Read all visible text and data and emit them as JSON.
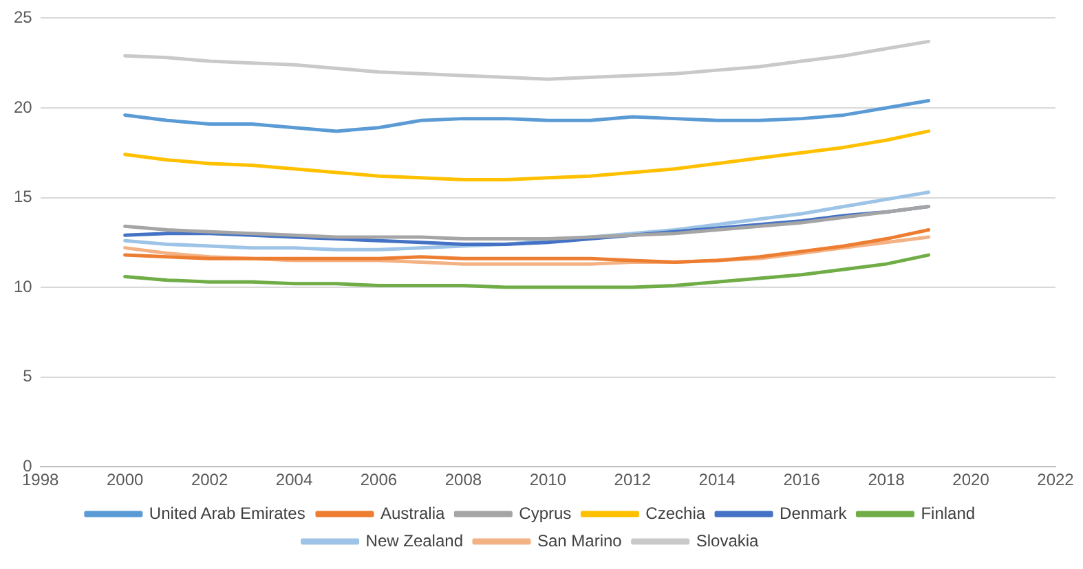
{
  "chart_data": {
    "type": "line",
    "x": [
      2000,
      2001,
      2002,
      2003,
      2004,
      2005,
      2006,
      2007,
      2008,
      2009,
      2010,
      2011,
      2012,
      2013,
      2014,
      2015,
      2016,
      2017,
      2018,
      2019
    ],
    "xlim": [
      1998,
      2022
    ],
    "xticks": [
      1998,
      2000,
      2002,
      2004,
      2006,
      2008,
      2010,
      2012,
      2014,
      2016,
      2018,
      2020,
      2022
    ],
    "ylim": [
      0,
      25
    ],
    "yticks": [
      0,
      5,
      10,
      15,
      20,
      25
    ],
    "grid": "y",
    "legend": "bottom",
    "marker": "none",
    "line_style": "solid",
    "series": [
      {
        "name": "United Arab Emirates",
        "color": "#5b9bd5",
        "values": [
          19.6,
          19.3,
          19.1,
          19.1,
          18.9,
          18.7,
          18.9,
          19.3,
          19.4,
          19.4,
          19.3,
          19.3,
          19.5,
          19.4,
          19.3,
          19.3,
          19.4,
          19.6,
          20.0,
          20.4
        ]
      },
      {
        "name": "Australia",
        "color": "#ed7d31",
        "values": [
          11.8,
          11.7,
          11.6,
          11.6,
          11.6,
          11.6,
          11.6,
          11.7,
          11.6,
          11.6,
          11.6,
          11.6,
          11.5,
          11.4,
          11.5,
          11.7,
          12.0,
          12.3,
          12.7,
          13.2
        ]
      },
      {
        "name": "Cyprus",
        "color": "#a5a5a5",
        "values": [
          13.4,
          13.2,
          13.1,
          13.0,
          12.9,
          12.8,
          12.8,
          12.8,
          12.7,
          12.7,
          12.7,
          12.8,
          12.9,
          13.0,
          13.2,
          13.4,
          13.6,
          13.9,
          14.2,
          14.5
        ]
      },
      {
        "name": "Czechia",
        "color": "#ffc000",
        "values": [
          17.4,
          17.1,
          16.9,
          16.8,
          16.6,
          16.4,
          16.2,
          16.1,
          16.0,
          16.0,
          16.1,
          16.2,
          16.4,
          16.6,
          16.9,
          17.2,
          17.5,
          17.8,
          18.2,
          18.7
        ]
      },
      {
        "name": "Denmark",
        "color": "#4472c4",
        "values": [
          12.9,
          13.0,
          13.0,
          12.9,
          12.8,
          12.7,
          12.6,
          12.5,
          12.4,
          12.4,
          12.5,
          12.7,
          12.9,
          13.1,
          13.3,
          13.5,
          13.7,
          14.0,
          14.2,
          14.5
        ]
      },
      {
        "name": "Finland",
        "color": "#70ad47",
        "values": [
          10.6,
          10.4,
          10.3,
          10.3,
          10.2,
          10.2,
          10.1,
          10.1,
          10.1,
          10.0,
          10.0,
          10.0,
          10.0,
          10.1,
          10.3,
          10.5,
          10.7,
          11.0,
          11.3,
          11.8
        ]
      },
      {
        "name": "New Zealand",
        "color": "#9dc3e6",
        "values": [
          12.6,
          12.4,
          12.3,
          12.2,
          12.2,
          12.1,
          12.1,
          12.2,
          12.3,
          12.4,
          12.6,
          12.8,
          13.0,
          13.2,
          13.5,
          13.8,
          14.1,
          14.5,
          14.9,
          15.3
        ]
      },
      {
        "name": "San Marino",
        "color": "#f4b183",
        "values": [
          12.2,
          11.9,
          11.7,
          11.6,
          11.5,
          11.5,
          11.5,
          11.4,
          11.3,
          11.3,
          11.3,
          11.3,
          11.4,
          11.4,
          11.5,
          11.6,
          11.9,
          12.2,
          12.5,
          12.8
        ]
      },
      {
        "name": "Slovakia",
        "color": "#c9c9c9",
        "values": [
          22.9,
          22.8,
          22.6,
          22.5,
          22.4,
          22.2,
          22.0,
          21.9,
          21.8,
          21.7,
          21.6,
          21.7,
          21.8,
          21.9,
          22.1,
          22.3,
          22.6,
          22.9,
          23.3,
          23.7
        ]
      }
    ]
  }
}
